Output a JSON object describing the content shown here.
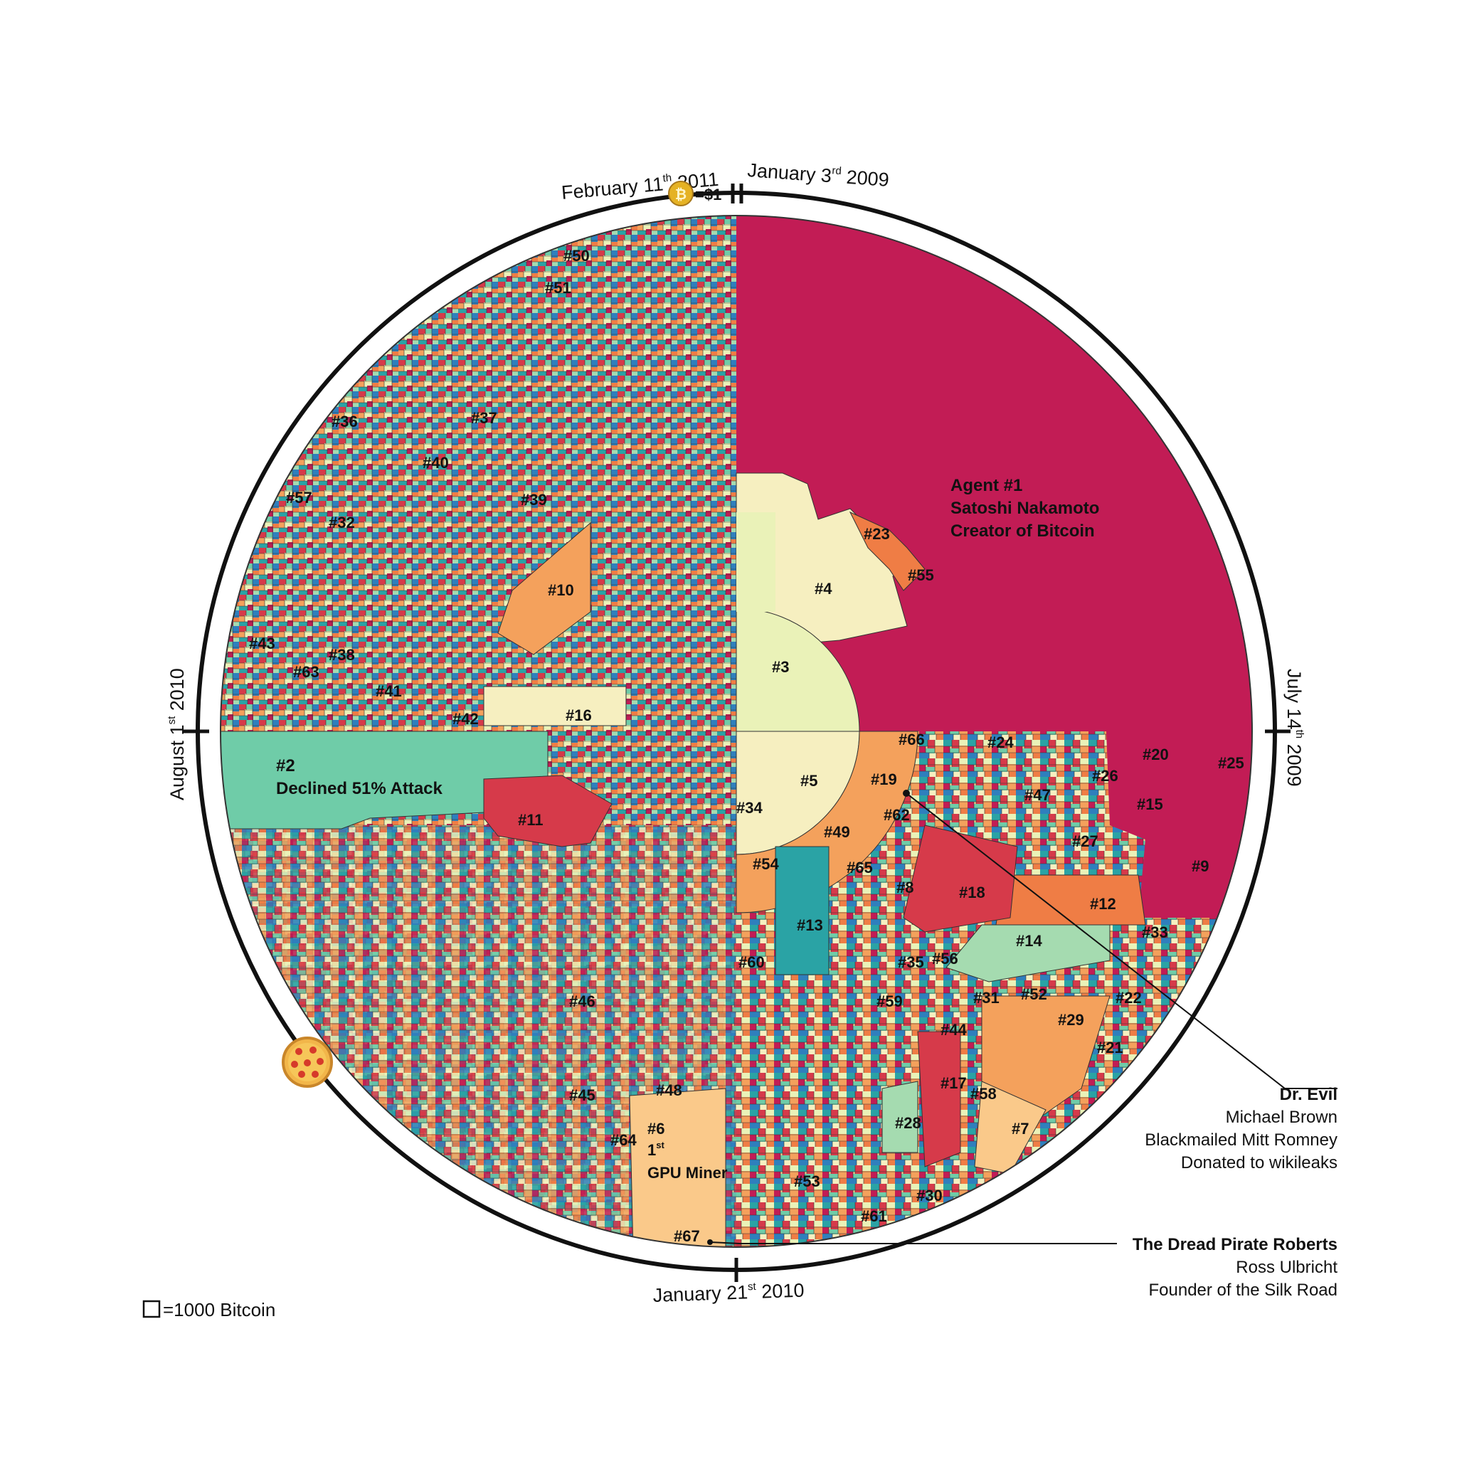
{
  "dates": {
    "top_right": {
      "main": "January 3",
      "sup": "rd",
      "year": " 2009"
    },
    "top_left": {
      "main": "February 11",
      "sup": "th",
      "year": " 2011"
    },
    "right": {
      "main": "July 14",
      "sup": "th",
      "year": " 2009"
    },
    "left": {
      "main": "August 1",
      "sup": "st",
      "year": " 2010"
    },
    "bottom": {
      "main": "January 21",
      "sup": "st",
      "year": "  2010"
    }
  },
  "coin_price": "=$1",
  "legend_text": "=1000 Bitcoin",
  "icons": {
    "coin": "bitcoin-coin-icon",
    "pizza": "pizza-icon"
  },
  "colors": {
    "crimson": "#c21c55",
    "teal_green": "#6fcca8",
    "pale_yellow": "#f6efc0",
    "light_yellow": "#eaf2b8",
    "orange": "#f4a15c",
    "deep_orange": "#ef7d45",
    "red": "#d63a4a",
    "blue": "#2f7fbd",
    "teal": "#2aa3a5",
    "mint": "#a5dbb0",
    "peach": "#fac98a"
  },
  "agent1": {
    "line1": "Agent #1",
    "line2": "Satoshi Nakamoto",
    "line3": "Creator of Bitcoin"
  },
  "agent2": {
    "line1": "#2",
    "line2": "Declined 51% Attack"
  },
  "agent6": {
    "line1": "#6",
    "line2": "1",
    "sup": "st",
    "line3": "GPU Miner"
  },
  "labels": [
    {
      "id": "#3"
    },
    {
      "id": "#4"
    },
    {
      "id": "#5"
    },
    {
      "id": "#7"
    },
    {
      "id": "#8"
    },
    {
      "id": "#9"
    },
    {
      "id": "#10"
    },
    {
      "id": "#11"
    },
    {
      "id": "#12"
    },
    {
      "id": "#13"
    },
    {
      "id": "#14"
    },
    {
      "id": "#15"
    },
    {
      "id": "#16"
    },
    {
      "id": "#17"
    },
    {
      "id": "#18"
    },
    {
      "id": "#19"
    },
    {
      "id": "#20"
    },
    {
      "id": "#21"
    },
    {
      "id": "#22"
    },
    {
      "id": "#23"
    },
    {
      "id": "#24"
    },
    {
      "id": "#25"
    },
    {
      "id": "#26"
    },
    {
      "id": "#27"
    },
    {
      "id": "#28"
    },
    {
      "id": "#29"
    },
    {
      "id": "#30"
    },
    {
      "id": "#31"
    },
    {
      "id": "#32"
    },
    {
      "id": "#33"
    },
    {
      "id": "#34"
    },
    {
      "id": "#35"
    },
    {
      "id": "#36"
    },
    {
      "id": "#37"
    },
    {
      "id": "#38"
    },
    {
      "id": "#39"
    },
    {
      "id": "#40"
    },
    {
      "id": "#41"
    },
    {
      "id": "#42"
    },
    {
      "id": "#43"
    },
    {
      "id": "#44"
    },
    {
      "id": "#45"
    },
    {
      "id": "#46"
    },
    {
      "id": "#47"
    },
    {
      "id": "#48"
    },
    {
      "id": "#49"
    },
    {
      "id": "#50"
    },
    {
      "id": "#51"
    },
    {
      "id": "#52"
    },
    {
      "id": "#53"
    },
    {
      "id": "#54"
    },
    {
      "id": "#55"
    },
    {
      "id": "#56"
    },
    {
      "id": "#57"
    },
    {
      "id": "#58"
    },
    {
      "id": "#59"
    },
    {
      "id": "#60"
    },
    {
      "id": "#61"
    },
    {
      "id": "#62"
    },
    {
      "id": "#63"
    },
    {
      "id": "#64"
    },
    {
      "id": "#65"
    },
    {
      "id": "#66"
    },
    {
      "id": "#67"
    }
  ],
  "annotations": {
    "dr_evil": {
      "title": "Dr. Evil",
      "line1": "Michael Brown",
      "line2": "Blackmailed Mitt Romney",
      "line3": "Donated to wikileaks"
    },
    "dread_pirate": {
      "title": "The Dread Pirate Roberts",
      "line1": "Ross Ulbricht",
      "line2": "Founder of the Silk Road"
    }
  }
}
